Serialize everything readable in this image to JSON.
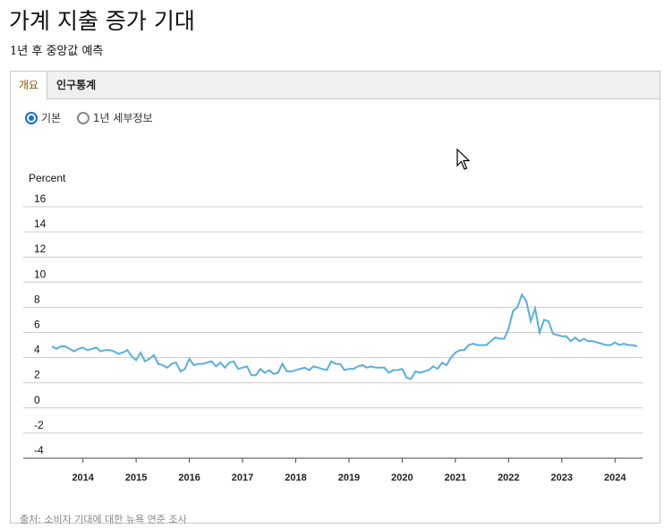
{
  "header": {
    "title": "가계 지출 증가 기대",
    "subtitle": "1년 후 중앙값 예측"
  },
  "tabs": [
    {
      "label": "개요",
      "active": true
    },
    {
      "label": "인구통계",
      "active": false
    }
  ],
  "radios": [
    {
      "label": "기본",
      "checked": true
    },
    {
      "label": "1년 세부정보",
      "checked": false
    }
  ],
  "source": "출처: 소비자 기대에 대한 뉴욕 연준 조사",
  "colors": {
    "line": "#5aaedf",
    "grid": "#cccccc",
    "accent": "#1a6fd1"
  },
  "chart_data": {
    "type": "line",
    "title": "",
    "xlabel": "",
    "ylabel": "Percent",
    "ylim": [
      -4,
      16
    ],
    "yticks": [
      16,
      14,
      12,
      10,
      8,
      6,
      4,
      2,
      0,
      -2,
      -4
    ],
    "xticks": [
      "2014",
      "2015",
      "2016",
      "2017",
      "2018",
      "2019",
      "2020",
      "2021",
      "2022",
      "2023",
      "2024"
    ],
    "x_start": "2013-06",
    "x_end": "2024-06",
    "grid": true,
    "series": [
      {
        "values": [
          4.9,
          4.7,
          4.9,
          4.9,
          4.7,
          4.5,
          4.7,
          4.8,
          4.6,
          4.7,
          4.8,
          4.5,
          4.6,
          4.6,
          4.5,
          4.3,
          4.4,
          4.6,
          4.1,
          3.8,
          4.4,
          3.7,
          3.9,
          4.2,
          3.5,
          3.4,
          3.2,
          3.5,
          3.6,
          2.9,
          3.1,
          3.9,
          3.4,
          3.5,
          3.5,
          3.6,
          3.7,
          3.3,
          3.6,
          3.2,
          3.6,
          3.7,
          3.1,
          3.2,
          3.3,
          2.6,
          2.6,
          3.1,
          2.8,
          3.0,
          2.7,
          2.8,
          3.5,
          2.9,
          2.9,
          3.0,
          3.1,
          3.2,
          3.0,
          3.3,
          3.2,
          3.1,
          3.0,
          3.7,
          3.5,
          3.5,
          3.0,
          3.1,
          3.1,
          3.3,
          3.4,
          3.2,
          3.3,
          3.2,
          3.2,
          3.2,
          2.8,
          3.0,
          3.0,
          3.1,
          2.4,
          2.3,
          2.9,
          2.8,
          2.9,
          3.0,
          3.3,
          3.1,
          3.6,
          3.4,
          4.0,
          4.4,
          4.6,
          4.6,
          5.0,
          5.1,
          5.0,
          5.0,
          5.0,
          5.3,
          5.6,
          5.5,
          5.5,
          6.3,
          7.7,
          8.0,
          9.0,
          8.5,
          6.9,
          7.9,
          6.0,
          7.0,
          6.9,
          5.9,
          5.8,
          5.7,
          5.7,
          5.3,
          5.6,
          5.3,
          5.5,
          5.3,
          5.3,
          5.2,
          5.1,
          5.0,
          5.0,
          5.2,
          5.0,
          5.1,
          5.0,
          5.0,
          4.9
        ]
      }
    ]
  }
}
